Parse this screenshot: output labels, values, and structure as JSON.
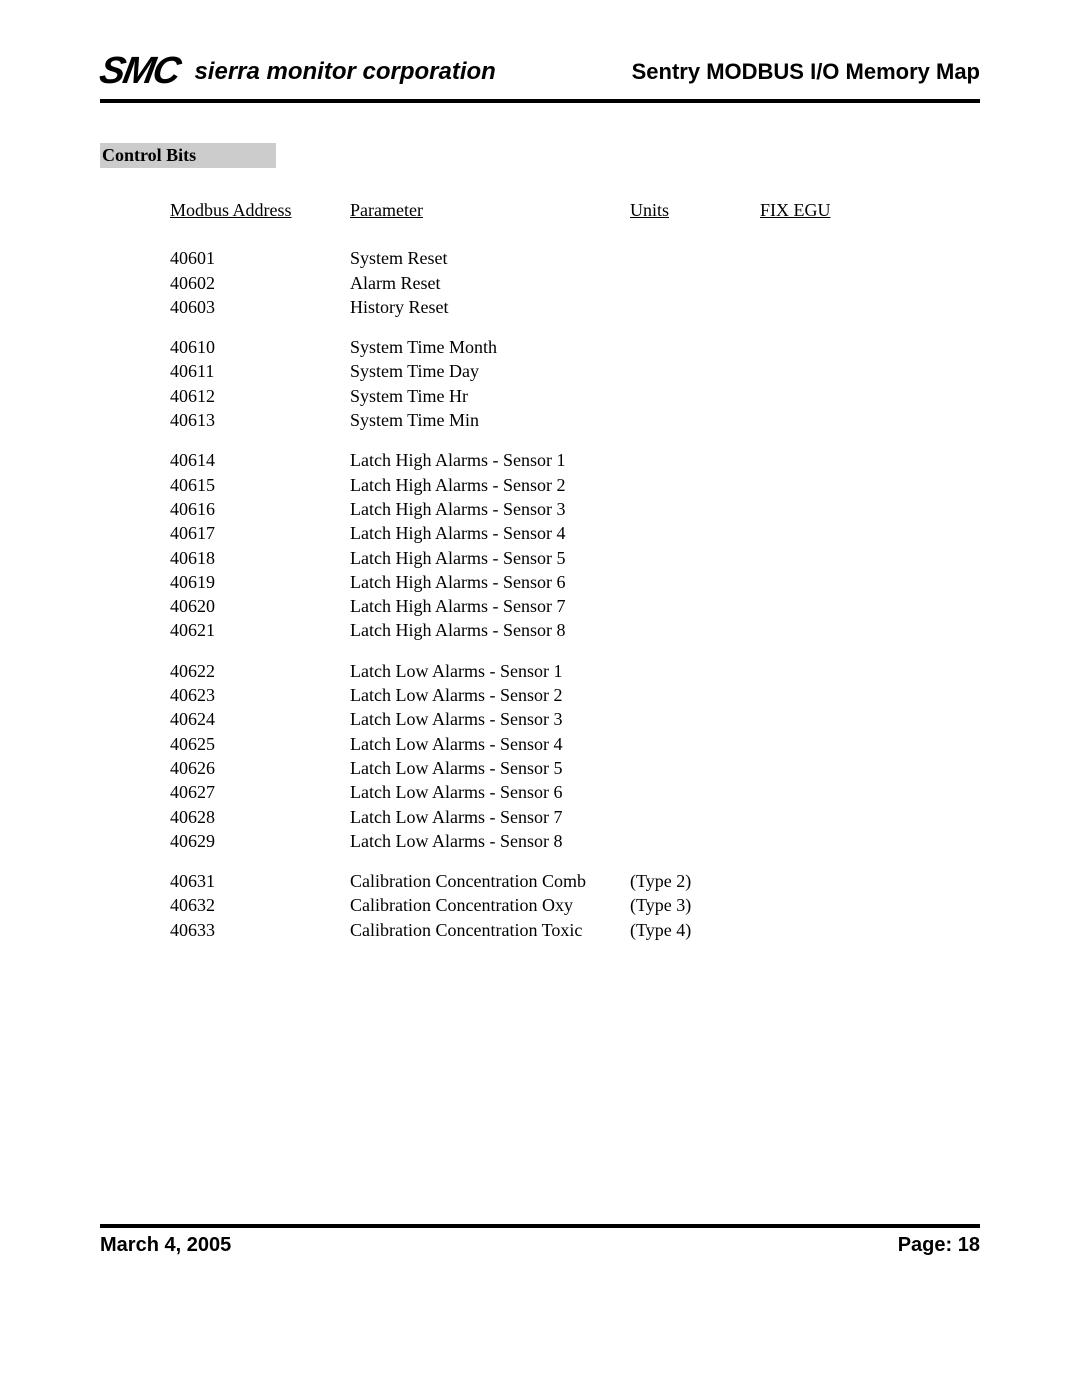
{
  "header": {
    "logo": "SMC",
    "company": "sierra monitor corporation",
    "title": "Sentry MODBUS I/O Memory Map"
  },
  "section_title": "Control Bits",
  "columns": {
    "addr": "Modbus Address",
    "param": "Parameter",
    "units": "Units",
    "fixegu": "FIX EGU"
  },
  "groups": [
    [
      {
        "addr": "40601",
        "param": "System Reset"
      },
      {
        "addr": "40602",
        "param": "Alarm Reset"
      },
      {
        "addr": "40603",
        "param": "History Reset"
      }
    ],
    [
      {
        "addr": "40610",
        "param": "System Time Month"
      },
      {
        "addr": "40611",
        "param": "System Time Day"
      },
      {
        "addr": "40612",
        "param": "System Time Hr"
      },
      {
        "addr": "40613",
        "param": "System Time Min"
      }
    ],
    [
      {
        "addr": "40614",
        "param": "Latch High Alarms - Sensor 1"
      },
      {
        "addr": "40615",
        "param": "Latch High Alarms - Sensor 2"
      },
      {
        "addr": "40616",
        "param": "Latch High Alarms - Sensor 3"
      },
      {
        "addr": "40617",
        "param": "Latch High Alarms - Sensor 4"
      },
      {
        "addr": "40618",
        "param": "Latch High Alarms - Sensor 5"
      },
      {
        "addr": "40619",
        "param": "Latch High Alarms - Sensor 6"
      },
      {
        "addr": "40620",
        "param": "Latch High Alarms - Sensor 7"
      },
      {
        "addr": "40621",
        "param": "Latch High Alarms - Sensor 8"
      }
    ],
    [
      {
        "addr": "40622",
        "param": "Latch Low Alarms - Sensor 1"
      },
      {
        "addr": "40623",
        "param": "Latch Low Alarms - Sensor 2"
      },
      {
        "addr": "40624",
        "param": "Latch Low Alarms - Sensor 3"
      },
      {
        "addr": "40625",
        "param": "Latch Low Alarms - Sensor 4"
      },
      {
        "addr": "40626",
        "param": "Latch Low Alarms - Sensor 5"
      },
      {
        "addr": "40627",
        "param": "Latch Low Alarms - Sensor 6"
      },
      {
        "addr": "40628",
        "param": "Latch Low Alarms - Sensor 7"
      },
      {
        "addr": "40629",
        "param": "Latch Low Alarms - Sensor 8"
      }
    ],
    [
      {
        "addr": "40631",
        "param": "Calibration Concentration Comb",
        "note": "(Type 2)"
      },
      {
        "addr": "40632",
        "param": "Calibration Concentration Oxy",
        "note": "(Type 3)"
      },
      {
        "addr": "40633",
        "param": "Calibration Concentration Toxic",
        "note": "(Type 4)"
      }
    ]
  ],
  "footer": {
    "date": "March 4, 2005",
    "page_label": "Page:",
    "page_num": "18"
  }
}
